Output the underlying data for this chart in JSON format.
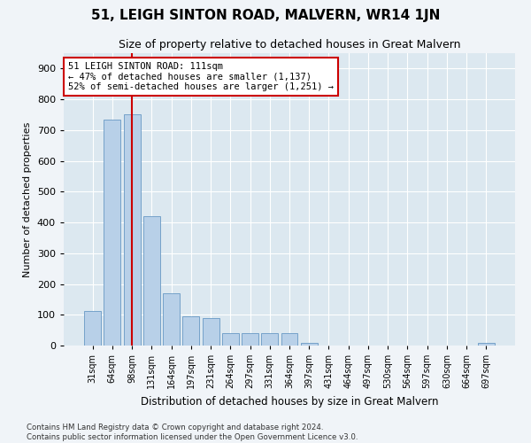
{
  "title": "51, LEIGH SINTON ROAD, MALVERN, WR14 1JN",
  "subtitle": "Size of property relative to detached houses in Great Malvern",
  "xlabel": "Distribution of detached houses by size in Great Malvern",
  "ylabel": "Number of detached properties",
  "categories": [
    "31sqm",
    "64sqm",
    "98sqm",
    "131sqm",
    "164sqm",
    "197sqm",
    "231sqm",
    "264sqm",
    "297sqm",
    "331sqm",
    "364sqm",
    "397sqm",
    "431sqm",
    "464sqm",
    "497sqm",
    "530sqm",
    "564sqm",
    "597sqm",
    "630sqm",
    "664sqm",
    "697sqm"
  ],
  "values": [
    113,
    735,
    750,
    420,
    170,
    95,
    90,
    40,
    40,
    40,
    40,
    10,
    0,
    0,
    0,
    0,
    0,
    0,
    0,
    0,
    10
  ],
  "bar_color": "#b8d0e8",
  "bar_edge_color": "#6899c4",
  "annotation_text_line1": "51 LEIGH SINTON ROAD: 111sqm",
  "annotation_text_line2": "← 47% of detached houses are smaller (1,137)",
  "annotation_text_line3": "52% of semi-detached houses are larger (1,251) →",
  "annotation_box_facecolor": "#ffffff",
  "annotation_box_edgecolor": "#cc0000",
  "vline_color": "#cc0000",
  "vline_x_index": 2,
  "footer_line1": "Contains HM Land Registry data © Crown copyright and database right 2024.",
  "footer_line2": "Contains public sector information licensed under the Open Government Licence v3.0.",
  "fig_facecolor": "#f0f4f8",
  "plot_facecolor": "#dce8f0",
  "ylim": [
    0,
    950
  ],
  "yticks": [
    0,
    100,
    200,
    300,
    400,
    500,
    600,
    700,
    800,
    900
  ],
  "title_fontsize": 11,
  "subtitle_fontsize": 9
}
